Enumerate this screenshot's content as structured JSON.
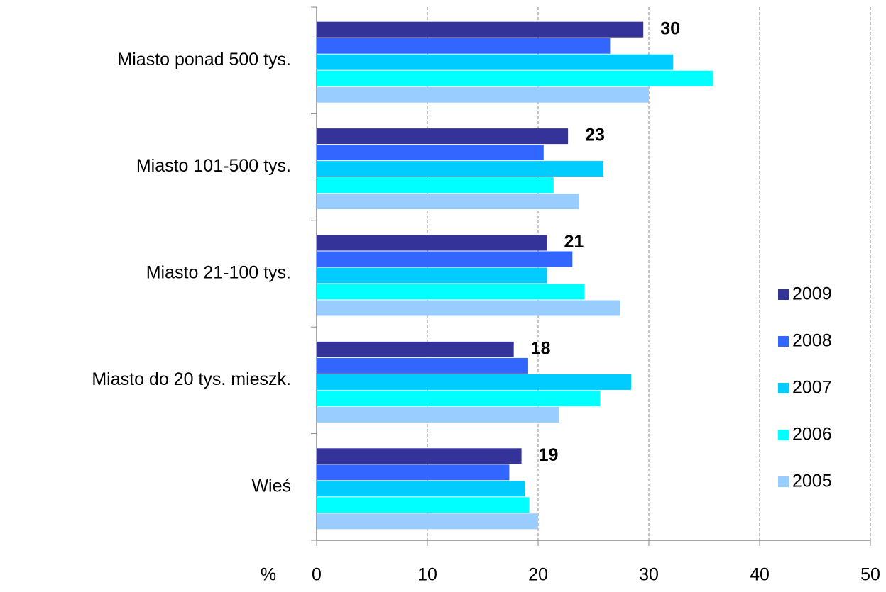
{
  "chart_data": {
    "type": "hbar",
    "categories": [
      "Miasto ponad 500 tys.",
      "Miasto 101-500 tys.",
      "Miasto 21-100 tys.",
      "Miasto do 20 tys. mieszk.",
      "Wieś"
    ],
    "series": [
      {
        "name": "2009",
        "color": "#333399",
        "values": [
          29.5,
          22.7,
          20.8,
          17.8,
          18.5
        ],
        "value_labels": [
          "30",
          "23",
          "21",
          "18",
          "19"
        ]
      },
      {
        "name": "2008",
        "color": "#3366ff",
        "values": [
          26.5,
          20.5,
          23.1,
          19.1,
          17.4
        ]
      },
      {
        "name": "2007",
        "color": "#00ccff",
        "values": [
          32.2,
          25.9,
          20.8,
          28.4,
          18.8
        ]
      },
      {
        "name": "2006",
        "color": "#00ffff",
        "values": [
          35.8,
          21.4,
          24.2,
          25.6,
          19.2
        ]
      },
      {
        "name": "2005",
        "color": "#99ccff",
        "values": [
          30.0,
          23.7,
          27.4,
          21.9,
          20.0
        ]
      }
    ],
    "xlabel": "%",
    "xlim": [
      0,
      50
    ],
    "xticks": [
      0,
      10,
      20,
      30,
      40,
      50
    ],
    "grid": true,
    "legend": "right"
  }
}
